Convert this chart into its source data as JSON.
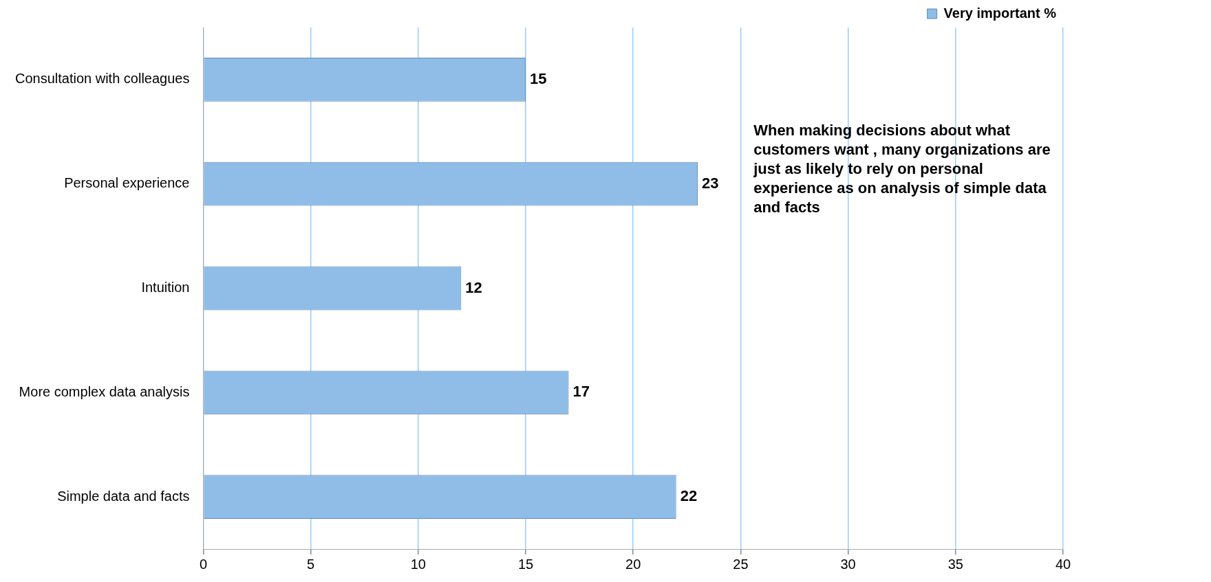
{
  "chart_data": {
    "type": "bar",
    "orientation": "horizontal",
    "categories": [
      "Consultation with colleagues",
      "Personal experience",
      "Intuition",
      "More complex data analysis",
      "Simple data and facts"
    ],
    "series": [
      {
        "name": "Very important %",
        "color": "#8fbde8",
        "values": [
          15,
          23,
          12,
          17,
          22
        ]
      }
    ],
    "xlim": [
      0,
      40
    ],
    "xticks": [
      0,
      5,
      10,
      15,
      20,
      25,
      30,
      35,
      40
    ],
    "grid": "x",
    "legend": "top right",
    "data_labels": true,
    "annotations": [
      "When making decisions about what customers want , many organizations are just as likely to rely on personal experience as on analysis of simple data and facts"
    ]
  }
}
